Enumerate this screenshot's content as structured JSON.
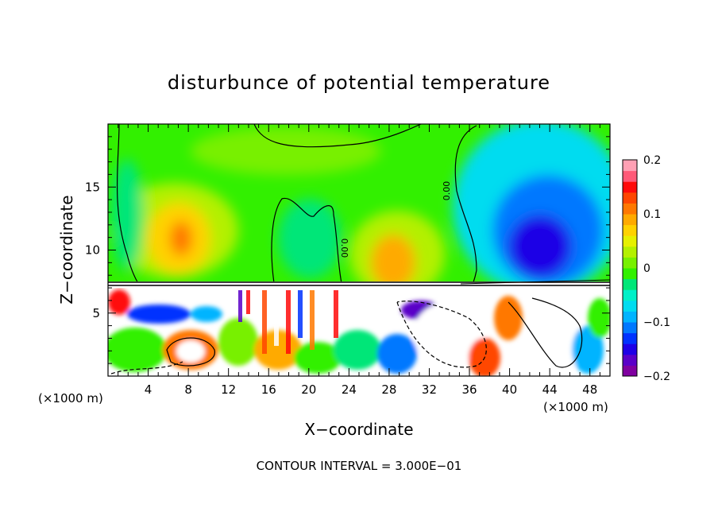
{
  "chart_data": {
    "type": "heatmap",
    "title": "disturbunce of potential temperature",
    "xlabel": "X−coordinate",
    "ylabel": "Z−coordinate",
    "x_unit_left": "(×1000 m)",
    "x_unit_right": "(×1000 m)",
    "xlim": [
      0,
      50
    ],
    "ylim": [
      0,
      20
    ],
    "xticks": [
      4,
      8,
      12,
      16,
      20,
      24,
      28,
      32,
      36,
      40,
      44,
      48
    ],
    "xtick_labels": [
      "4",
      "8",
      "12",
      "16",
      "20",
      "24",
      "28",
      "32",
      "36",
      "40",
      "44",
      "48"
    ],
    "yticks": [
      5,
      10,
      15
    ],
    "ytick_labels": [
      "5",
      "10",
      "15"
    ],
    "colorbar": {
      "range": [
        -0.2,
        0.2
      ],
      "ticks": [
        0.2,
        0.1,
        0,
        -0.1,
        -0.2
      ],
      "tick_labels": [
        "0.2",
        "0.1",
        "0",
        "−0.1",
        "−0.2"
      ],
      "colors": [
        "#8000a0",
        "#5a00c8",
        "#1e00e6",
        "#0032ff",
        "#0078ff",
        "#00b4ff",
        "#00dcf0",
        "#00f0c8",
        "#00e678",
        "#32f000",
        "#78f000",
        "#b4f000",
        "#e6f000",
        "#ffd200",
        "#ffaa00",
        "#ff7800",
        "#ff4600",
        "#ff0a0a",
        "#ff5a78",
        "#ffa0b4"
      ]
    },
    "contour_labels": [
      "0.00",
      "0.00"
    ],
    "annotation": "CONTOUR INTERVAL = 3.000E−01"
  }
}
